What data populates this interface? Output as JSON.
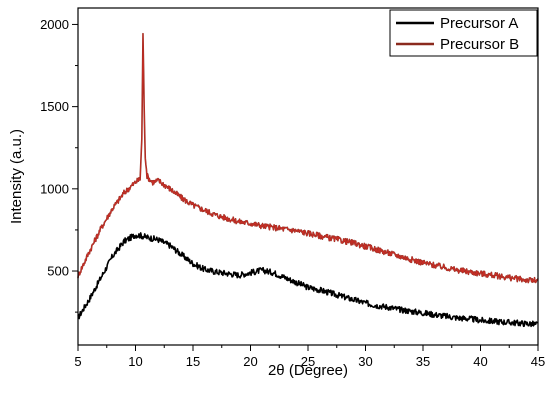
{
  "chart_data": {
    "type": "line",
    "title": "",
    "xlabel": "2θ (Degree)",
    "ylabel": "Intensity (a.u.)",
    "xlim": [
      5,
      45
    ],
    "ylim": [
      50,
      2100
    ],
    "xticks": [
      5,
      10,
      15,
      20,
      25,
      30,
      35,
      40,
      45
    ],
    "yticks": [
      500,
      1000,
      1500,
      2000
    ],
    "grid": false,
    "legend_position": "top-right",
    "series": [
      {
        "name": "Precursor A",
        "color": "#000000",
        "x": [
          5,
          6,
          7,
          8,
          9,
          10,
          10.5,
          11,
          12,
          13,
          14,
          15,
          16,
          17,
          18,
          19,
          20,
          21,
          22,
          23,
          24,
          25,
          26,
          27,
          28,
          29,
          30,
          31,
          32,
          33,
          34,
          35,
          36,
          37,
          38,
          39,
          40,
          41,
          42,
          43,
          44,
          45
        ],
        "y": [
          215,
          330,
          460,
          590,
          680,
          720,
          715,
          705,
          690,
          655,
          600,
          545,
          510,
          495,
          485,
          475,
          490,
          505,
          490,
          460,
          430,
          400,
          385,
          365,
          345,
          325,
          305,
          290,
          280,
          265,
          255,
          245,
          235,
          225,
          215,
          210,
          200,
          195,
          190,
          185,
          180,
          175
        ]
      },
      {
        "name": "Precursor B",
        "color": "#8B2A1E",
        "x": [
          5,
          6,
          7,
          8,
          9,
          10,
          10.4,
          10.55,
          10.65,
          10.75,
          10.85,
          11,
          11.2,
          11.5,
          12,
          13,
          14,
          15,
          16,
          17,
          18,
          19,
          20,
          21,
          22,
          23,
          24,
          25,
          26,
          27,
          28,
          29,
          30,
          31,
          32,
          33,
          34,
          35,
          36,
          37,
          38,
          39,
          40,
          41,
          42,
          43,
          44,
          45
        ],
        "y": [
          470,
          620,
          760,
          880,
          975,
          1040,
          1060,
          1300,
          1950,
          1500,
          1200,
          1080,
          1060,
          1040,
          1050,
          1000,
          945,
          900,
          870,
          840,
          820,
          800,
          790,
          775,
          765,
          755,
          745,
          730,
          715,
          700,
          685,
          670,
          650,
          630,
          610,
          590,
          570,
          550,
          535,
          520,
          505,
          495,
          485,
          475,
          465,
          455,
          445,
          440
        ]
      }
    ]
  }
}
